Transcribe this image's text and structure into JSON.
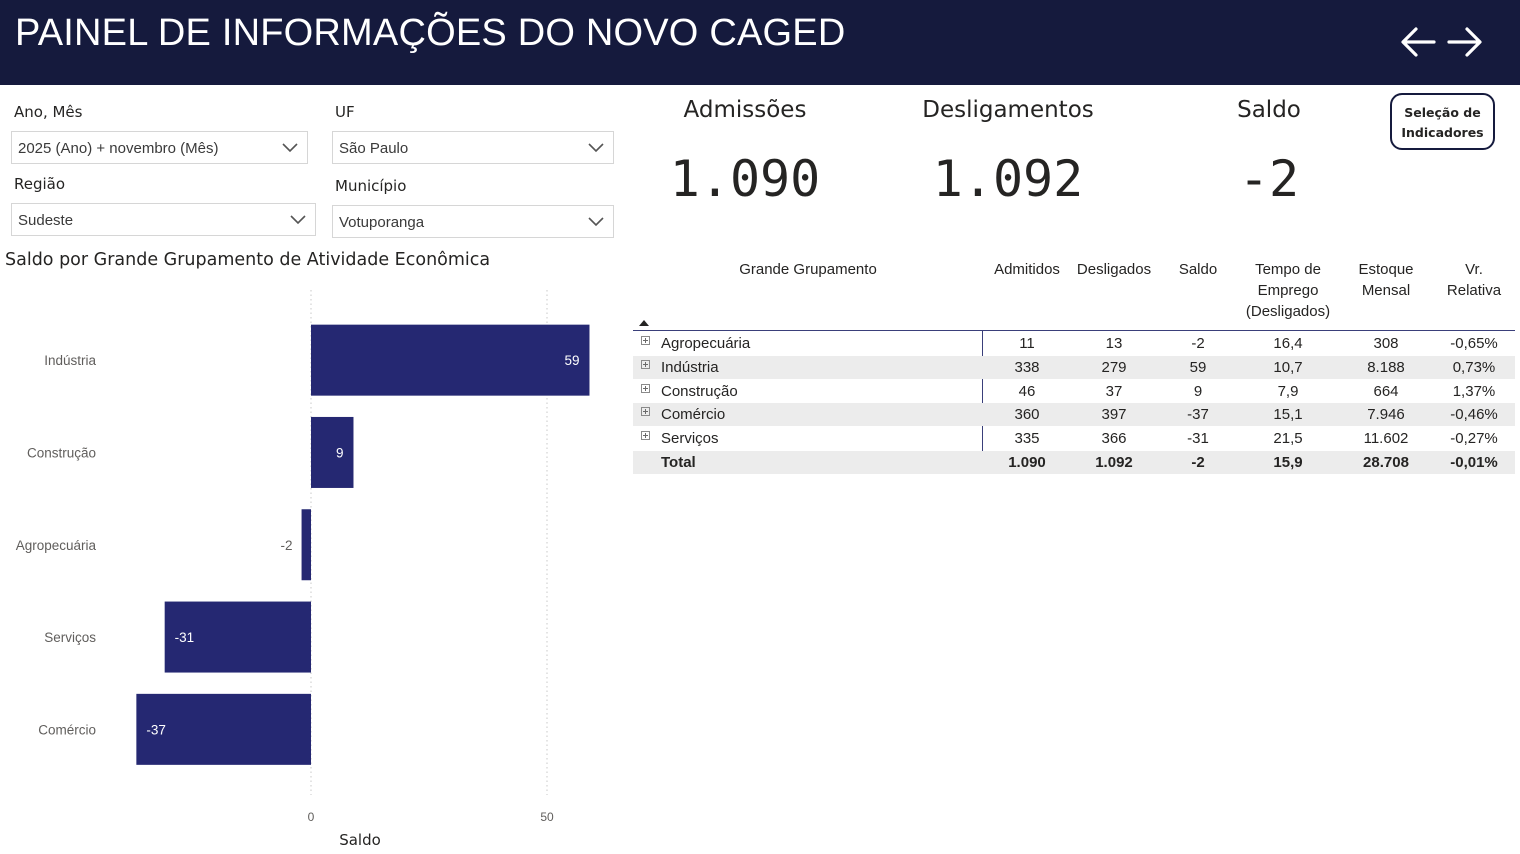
{
  "header": {
    "title": "PAINEL DE INFORMAÇÕES DO NOVO CAGED",
    "back_icon": "arrow-left-icon",
    "forward_icon": "arrow-right-icon"
  },
  "filters": {
    "ano_mes": {
      "label": "Ano, Mês",
      "value": "2025 (Ano) + novembro (Mês)"
    },
    "uf": {
      "label": "UF",
      "value": "São Paulo"
    },
    "regiao": {
      "label": "Região",
      "value": "Sudeste"
    },
    "municipio": {
      "label": "Município",
      "value": "Votuporanga"
    }
  },
  "kpis": {
    "admissoes": {
      "label": "Admissões",
      "value": "1.090"
    },
    "desligamentos": {
      "label": "Desligamentos",
      "value": "1.092"
    },
    "saldo": {
      "label": "Saldo",
      "value": "-2"
    }
  },
  "selection_button": {
    "line1": "Seleção de",
    "line2": "Indicadores"
  },
  "chart": {
    "title": "Saldo por Grande Grupamento de Atividade Econômica"
  },
  "chart_data": {
    "type": "bar",
    "orientation": "horizontal",
    "title": "Saldo por Grande Grupamento de Atividade Econômica",
    "xlabel": "Saldo",
    "ylabel": "",
    "categories": [
      "Indústria",
      "Construção",
      "Agropecuária",
      "Serviços",
      "Comércio"
    ],
    "values": [
      59,
      9,
      -2,
      -31,
      -37
    ],
    "data_labels": [
      "59",
      "9",
      "-2",
      "-31",
      "-37"
    ],
    "x_ticks": [
      0,
      50
    ],
    "xlim": [
      -37,
      59
    ],
    "grid": true,
    "bar_color": "#252872"
  },
  "table": {
    "headers": {
      "grupamento": "Grande Grupamento",
      "admitidos": "Admitidos",
      "desligados": "Desligados",
      "saldo": "Saldo",
      "tempo_l1": "Tempo de",
      "tempo_l2": "Emprego",
      "tempo_l3": "(Desligados)",
      "estoque_l1": "Estoque",
      "estoque_l2": "Mensal",
      "vr_l1": "Vr.",
      "vr_l2": "Relativa"
    },
    "rows": [
      {
        "name": "Agropecuária",
        "admitidos": "11",
        "desligados": "13",
        "saldo": "-2",
        "tempo": "16,4",
        "estoque": "308",
        "vr": "-0,65%"
      },
      {
        "name": "Indústria",
        "admitidos": "338",
        "desligados": "279",
        "saldo": "59",
        "tempo": "10,7",
        "estoque": "8.188",
        "vr": "0,73%"
      },
      {
        "name": "Construção",
        "admitidos": "46",
        "desligados": "37",
        "saldo": "9",
        "tempo": "7,9",
        "estoque": "664",
        "vr": "1,37%"
      },
      {
        "name": "Comércio",
        "admitidos": "360",
        "desligados": "397",
        "saldo": "-37",
        "tempo": "15,1",
        "estoque": "7.946",
        "vr": "-0,46%"
      },
      {
        "name": "Serviços",
        "admitidos": "335",
        "desligados": "366",
        "saldo": "-31",
        "tempo": "21,5",
        "estoque": "11.602",
        "vr": "-0,27%"
      }
    ],
    "total": {
      "name": "Total",
      "admitidos": "1.090",
      "desligados": "1.092",
      "saldo": "-2",
      "tempo": "15,9",
      "estoque": "28.708",
      "vr": "-0,01%"
    }
  },
  "colors": {
    "header_bg": "#151a3d",
    "bar": "#252872",
    "row_alt": "#ececec"
  }
}
